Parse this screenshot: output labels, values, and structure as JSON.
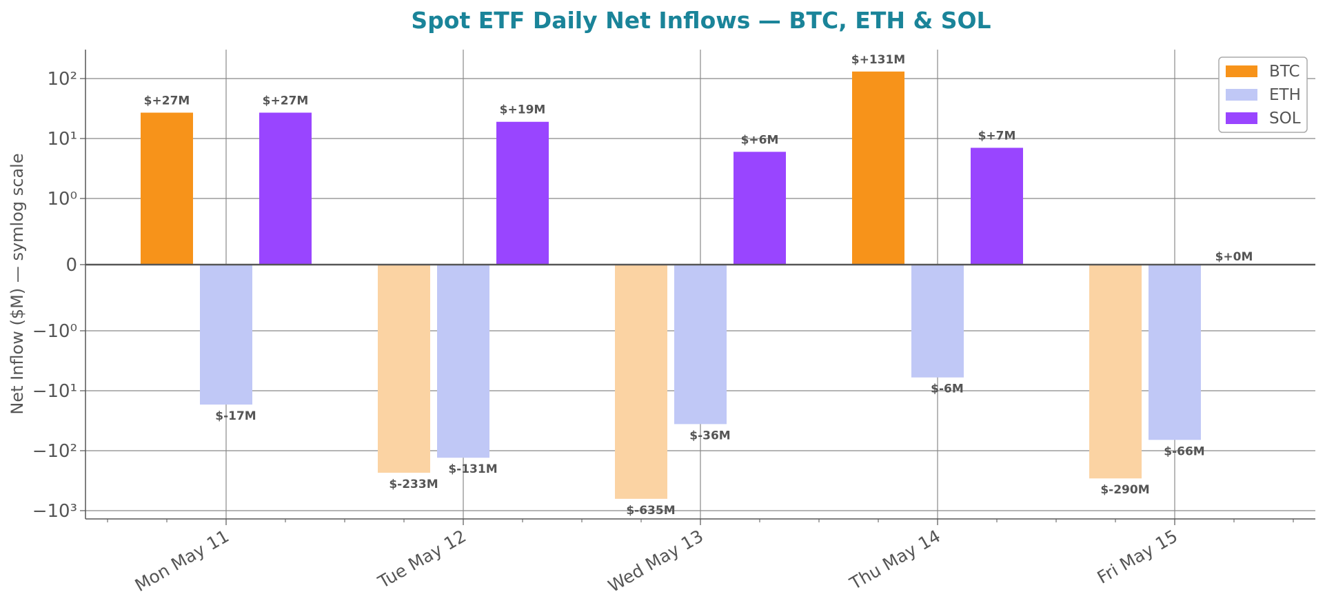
{
  "chart_data": {
    "type": "bar",
    "title": "Spot ETF Daily Net Inflows — BTC, ETH & SOL",
    "ylabel": "Net Inflow ($M) — symlog scale",
    "xlabel": "",
    "yscale": "symlog",
    "ylim": [
      -1500,
      300
    ],
    "grid": true,
    "legend_position": "top-right",
    "categories": [
      "Mon May 11",
      "Tue May 12",
      "Wed May 13",
      "Thu May 14",
      "Fri May 15"
    ],
    "series": [
      {
        "name": "BTC",
        "color": "#f7931a",
        "negative_color": "#fbd3a3",
        "values": [
          27,
          -233,
          -635,
          131,
          -290
        ],
        "labels": [
          "$+27M",
          "$-233M",
          "$-635M",
          "$+131M",
          "$-290M"
        ]
      },
      {
        "name": "ETH",
        "color": "#c0c8f6",
        "negative_color": "#c0c8f6",
        "values": [
          -17,
          -131,
          -36,
          -6,
          -66
        ],
        "labels": [
          "$-17M",
          "$-131M",
          "$-36M",
          "$-6M",
          "$-66M"
        ]
      },
      {
        "name": "SOL",
        "color": "#9945ff",
        "negative_color": "#9945ff",
        "values": [
          27,
          19,
          6,
          7,
          0
        ],
        "labels": [
          "$+27M",
          "$+19M",
          "$+6M",
          "$+7M",
          "$+0M"
        ]
      }
    ],
    "yticks": [
      {
        "value": 100,
        "label": "10²"
      },
      {
        "value": 10,
        "label": "10¹"
      },
      {
        "value": 1,
        "label": "10⁰"
      },
      {
        "value": 0,
        "label": "0"
      },
      {
        "value": -1,
        "label": "−10⁰"
      },
      {
        "value": -10,
        "label": "−10¹"
      },
      {
        "value": -100,
        "label": "−10²"
      },
      {
        "value": -1000,
        "label": "−10³"
      }
    ],
    "colors": {
      "title": "#1a8499",
      "axis": "#555555",
      "grid": "#888888"
    }
  }
}
